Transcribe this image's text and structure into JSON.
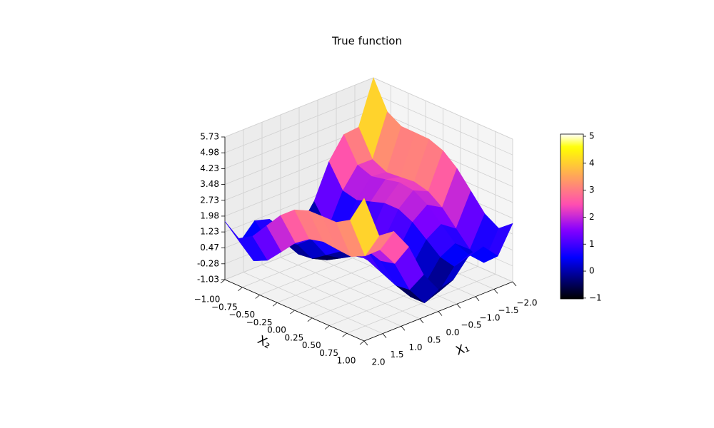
{
  "chart_data": {
    "type": "surface",
    "title": "True function",
    "xlabel": "X₁",
    "ylabel": "X₂",
    "x": [
      -2,
      -1.6,
      -1.2,
      -0.8,
      -0.4,
      0,
      0.4,
      0.8,
      1.2,
      1.6,
      2
    ],
    "y": [
      -1,
      -0.8,
      -0.6,
      -0.4,
      -0.2,
      0,
      0.2,
      0.4,
      0.6,
      0.8,
      1
    ],
    "z": [
      [
        5.73,
        3.67,
        3.6,
        2.59,
        0.99,
        0,
        0.19,
        0.99,
        1.2,
        0.47,
        1.73
      ],
      [
        4.41,
        2.43,
        2.44,
        1.51,
        -0.01,
        -0.92,
        -0.65,
        0.23,
        0.52,
        -0.13,
        1.21
      ],
      [
        4.01,
        2.11,
        2.2,
        1.35,
        -0.09,
        -0.92,
        -0.57,
        0.39,
        0.76,
        0.19,
        1.61
      ],
      [
        4.0,
        2.17,
        2.34,
        1.57,
        0.21,
        -0.54,
        -0.11,
        0.93,
        1.38,
        0.89,
        2.4
      ],
      [
        3.98,
        2.24,
        2.49,
        1.79,
        0.51,
        -0.15,
        0.35,
        1.47,
        2.01,
        1.6,
        3.18
      ],
      [
        3.73,
        2.07,
        2.4,
        1.79,
        0.59,
        0,
        0.59,
        1.79,
        2.4,
        2.07,
        3.73
      ],
      [
        3.18,
        1.6,
        2.01,
        1.47,
        0.35,
        -0.15,
        0.51,
        1.79,
        2.49,
        2.24,
        3.98
      ],
      [
        2.4,
        0.89,
        1.38,
        0.93,
        -0.11,
        -0.54,
        0.21,
        1.57,
        2.34,
        2.17,
        4.0
      ],
      [
        1.61,
        0.19,
        0.76,
        0.39,
        -0.57,
        -0.92,
        -0.09,
        1.35,
        2.2,
        2.11,
        4.01
      ],
      [
        1.21,
        -0.13,
        0.52,
        0.23,
        -0.65,
        -0.92,
        -0.01,
        1.51,
        2.44,
        2.43,
        4.41
      ],
      [
        1.73,
        0.47,
        1.2,
        0.99,
        0.19,
        0,
        0.99,
        2.59,
        3.6,
        3.67,
        5.73
      ]
    ],
    "xlim": [
      -2,
      2
    ],
    "ylim": [
      -1,
      1
    ],
    "zlim": [
      -1.03,
      5.73
    ],
    "xticks": [
      {
        "value": -2,
        "label": "−2.0"
      },
      {
        "value": -1.5,
        "label": "−1.5"
      },
      {
        "value": -1,
        "label": "−1.0"
      },
      {
        "value": -0.5,
        "label": "−0.5"
      },
      {
        "value": 0,
        "label": "0.0"
      },
      0.5,
      {
        "value": 1,
        "label": "1.0"
      },
      1.5,
      {
        "value": 2,
        "label": "2.0"
      }
    ],
    "yticks": [
      {
        "value": -1,
        "label": "−1.00"
      },
      {
        "value": -0.75,
        "label": "−0.75"
      },
      {
        "value": -0.5,
        "label": "−0.50"
      },
      {
        "value": -0.25,
        "label": "−0.25"
      },
      {
        "value": 0,
        "label": "0.00"
      },
      0.25,
      {
        "value": 0.5,
        "label": "0.50"
      },
      0.75,
      {
        "value": 1,
        "label": "1.00"
      }
    ],
    "zticks": [
      -1.03,
      -0.28,
      0.47,
      1.23,
      1.98,
      2.73,
      3.48,
      4.23,
      4.98,
      5.73
    ],
    "colormap": "gnuplot2",
    "clim": [
      -1.03,
      5.08
    ],
    "colorbar_ticks": [
      {
        "value": -1,
        "label": "−1"
      },
      0,
      1,
      2,
      3,
      4,
      5
    ],
    "grid": true
  }
}
